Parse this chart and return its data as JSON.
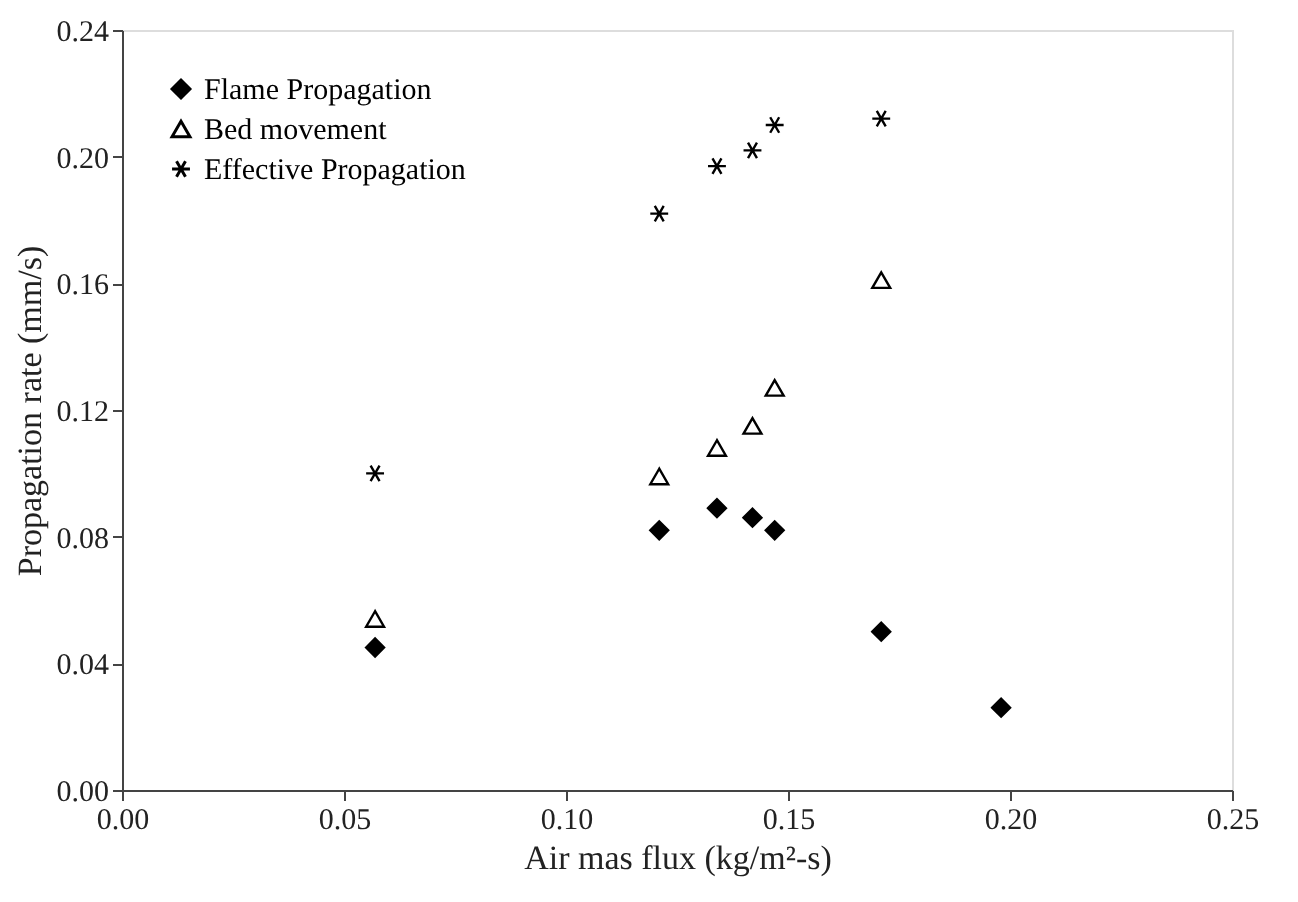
{
  "chart_data": {
    "type": "scatter",
    "xlabel": "Air mas flux (kg/m²-s)",
    "ylabel": "Propagation rate (mm/s)",
    "xlim": [
      0,
      0.25
    ],
    "ylim": [
      0,
      0.24
    ],
    "xticks": [
      {
        "value": 0,
        "label": "0.00"
      },
      0.05,
      {
        "value": 0.1,
        "label": "0.10"
      },
      0.15,
      {
        "value": 0.2,
        "label": "0.20"
      },
      0.25
    ],
    "yticks": [
      {
        "value": 0,
        "label": "0.00"
      },
      0.04,
      0.08,
      0.12,
      0.16,
      {
        "value": 0.2,
        "label": "0.20"
      },
      0.24
    ],
    "grid": false,
    "legend": "top left",
    "series": [
      {
        "name": "Flame Propagation",
        "color": "#000000",
        "marker": "diamond",
        "x": [
          0.057,
          0.121,
          0.134,
          0.142,
          0.147,
          0.171,
          0.198
        ],
        "values": [
          0.045,
          0.082,
          0.089,
          0.086,
          0.082,
          0.05,
          0.026
        ]
      },
      {
        "name": "Bed movement",
        "color": "#000000",
        "marker": "triangle",
        "x": [
          0.057,
          0.121,
          0.134,
          0.142,
          0.147,
          0.171
        ],
        "values": [
          0.054,
          0.099,
          0.108,
          0.115,
          0.127,
          0.161
        ]
      },
      {
        "name": "Effective Propagation",
        "color": "#000000",
        "marker": "cross",
        "x": [
          0.057,
          0.121,
          0.134,
          0.142,
          0.147,
          0.171
        ],
        "values": [
          0.1,
          0.182,
          0.197,
          0.202,
          0.21,
          0.212
        ]
      }
    ]
  }
}
